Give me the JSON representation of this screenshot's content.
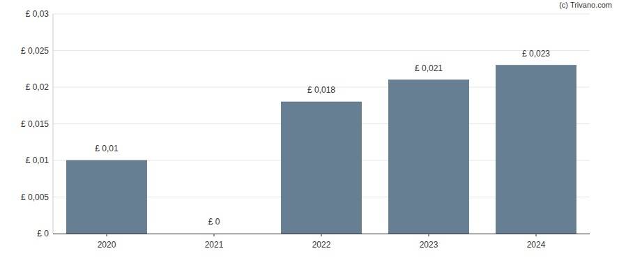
{
  "chart_data": {
    "type": "bar",
    "annotations": [
      "(c) Trivano.com"
    ],
    "categories": [
      "2020",
      "2021",
      "2022",
      "2023",
      "2024"
    ],
    "values": [
      0.01,
      0,
      0.018,
      0.021,
      0.023
    ],
    "value_labels": [
      "£ 0,01",
      "£ 0",
      "£ 0,018",
      "£ 0,021",
      "£ 0,023"
    ],
    "data_labels": true,
    "color": "#667f92",
    "ylim": [
      0,
      0.03
    ],
    "yticks": [
      {
        "value": 0,
        "label": "£ 0"
      },
      {
        "value": 0.005,
        "label": "£ 0,005"
      },
      {
        "value": 0.01,
        "label": "£ 0,01"
      },
      {
        "value": 0.015,
        "label": "£ 0,015"
      },
      {
        "value": 0.02,
        "label": "£ 0,02"
      },
      {
        "value": 0.025,
        "label": "£ 0,025"
      },
      {
        "value": 0.03,
        "label": "£ 0,03"
      }
    ],
    "grid": true
  }
}
